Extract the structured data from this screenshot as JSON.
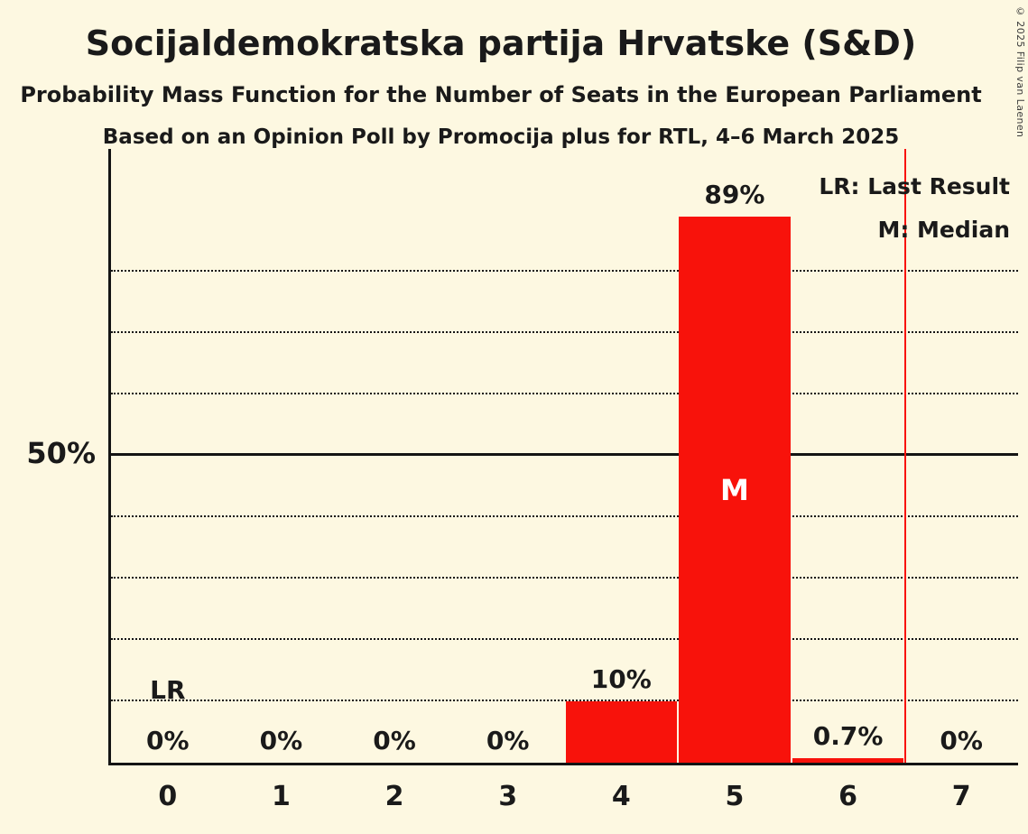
{
  "title": "Socijaldemokratska partija Hrvatske (S&D)",
  "subtitle1": "Probability Mass Function for the Number of Seats in the European Parliament",
  "subtitle2": "Based on an Opinion Poll by Promocija plus for RTL, 4–6 March 2025",
  "copyright": "© 2025 Filip van Laenen",
  "legend": {
    "lr": "LR: Last Result",
    "m": "M: Median"
  },
  "y_axis": {
    "label_50": "50%"
  },
  "colors": {
    "background": "#fdf8e1",
    "bar": "#f8120b",
    "lr_line": "#f8120b",
    "text": "#1a1a1a"
  },
  "chart_data": {
    "type": "bar",
    "title": "Socijaldemokratska partija Hrvatske (S&D)",
    "categories": [
      "0",
      "1",
      "2",
      "3",
      "4",
      "5",
      "6",
      "7"
    ],
    "values": [
      0,
      0,
      0,
      0,
      10,
      89,
      0.7,
      0
    ],
    "bar_labels": [
      "0%",
      "0%",
      "0%",
      "0%",
      "10%",
      "89%",
      "0.7%",
      "0%"
    ],
    "bar_color": "#f8120b",
    "xlabel": "",
    "ylabel": "",
    "ylim": [
      0,
      100
    ],
    "solid_gridline": 50,
    "dotted_gridlines": [
      10,
      20,
      30,
      40,
      60,
      70,
      80
    ],
    "median_label": "M",
    "median_category_index": 5,
    "lr_label": "LR",
    "lr_label_category_index": 0,
    "lr_line_x_category": 6.5,
    "legend_position": "top-right",
    "grid": "horizontal-only"
  }
}
